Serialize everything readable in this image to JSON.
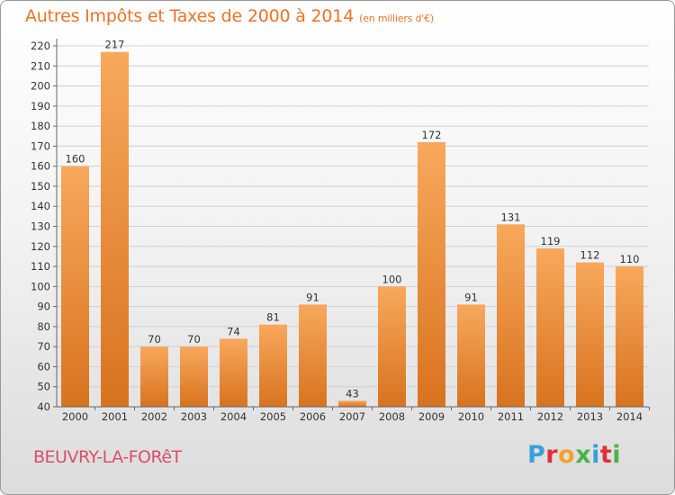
{
  "title": {
    "main": "Autres Impôts et Taxes de 2000 à 2014",
    "unit": "(en milliers d'€)"
  },
  "commune": "BEUVRY-LA-FORêT",
  "logo": {
    "text": "Proxiti",
    "letter_colors": [
      "#3aa0d8",
      "#e0303a",
      "#f2a22a",
      "#4bb34b",
      "#3aa0d8",
      "#e0303a",
      "#4bb34b"
    ]
  },
  "colors": {
    "bar_light": "#f8a85c",
    "bar_dark": "#d8731f",
    "title": "#e8732a",
    "commune": "#d94f6b"
  },
  "chart_data": {
    "type": "bar",
    "title": "Autres Impôts et Taxes de 2000 à 2014",
    "subtitle": "(en milliers d'€)",
    "categories": [
      "2000",
      "2001",
      "2002",
      "2003",
      "2004",
      "2005",
      "2006",
      "2007",
      "2008",
      "2009",
      "2010",
      "2011",
      "2012",
      "2013",
      "2014"
    ],
    "values": [
      160,
      217,
      70,
      70,
      74,
      81,
      91,
      43,
      100,
      172,
      91,
      131,
      119,
      112,
      110
    ],
    "ylim": [
      40,
      220
    ],
    "yticks": [
      40,
      50,
      60,
      70,
      80,
      90,
      100,
      110,
      120,
      130,
      140,
      150,
      160,
      170,
      180,
      190,
      200,
      210,
      220
    ],
    "grid": true,
    "data_labels": true
  }
}
